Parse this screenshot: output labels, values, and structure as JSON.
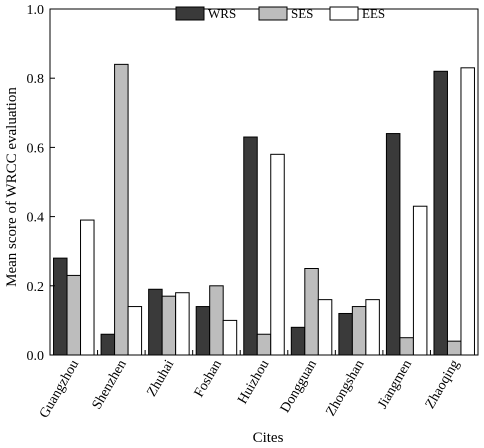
{
  "chart_data": {
    "type": "bar",
    "title": "",
    "xlabel": "Cites",
    "ylabel": "Mean score of WRCC evaluation",
    "ylim": [
      0,
      1.0
    ],
    "yticks": [
      "0.0",
      "0.2",
      "0.4",
      "0.6",
      "0.8",
      "1.0"
    ],
    "categories": [
      "Guangzhou",
      "Shenzhen",
      "Zhuhai",
      "Foshan",
      "Huizhou",
      "Dongguan",
      "Zhongshan",
      "Jiangmen",
      "Zhaoqing"
    ],
    "series": [
      {
        "name": "WRS",
        "color": "#3a3a3a",
        "values": [
          0.28,
          0.06,
          0.19,
          0.14,
          0.63,
          0.08,
          0.12,
          0.64,
          0.82
        ]
      },
      {
        "name": "SES",
        "color": "#bdbdbd",
        "values": [
          0.23,
          0.84,
          0.17,
          0.2,
          0.06,
          0.25,
          0.14,
          0.05,
          0.04
        ]
      },
      {
        "name": "EES",
        "color": "#ffffff",
        "values": [
          0.39,
          0.14,
          0.18,
          0.1,
          0.58,
          0.16,
          0.16,
          0.43,
          0.83
        ]
      }
    ],
    "legend_position": "top-center",
    "grid": false
  }
}
